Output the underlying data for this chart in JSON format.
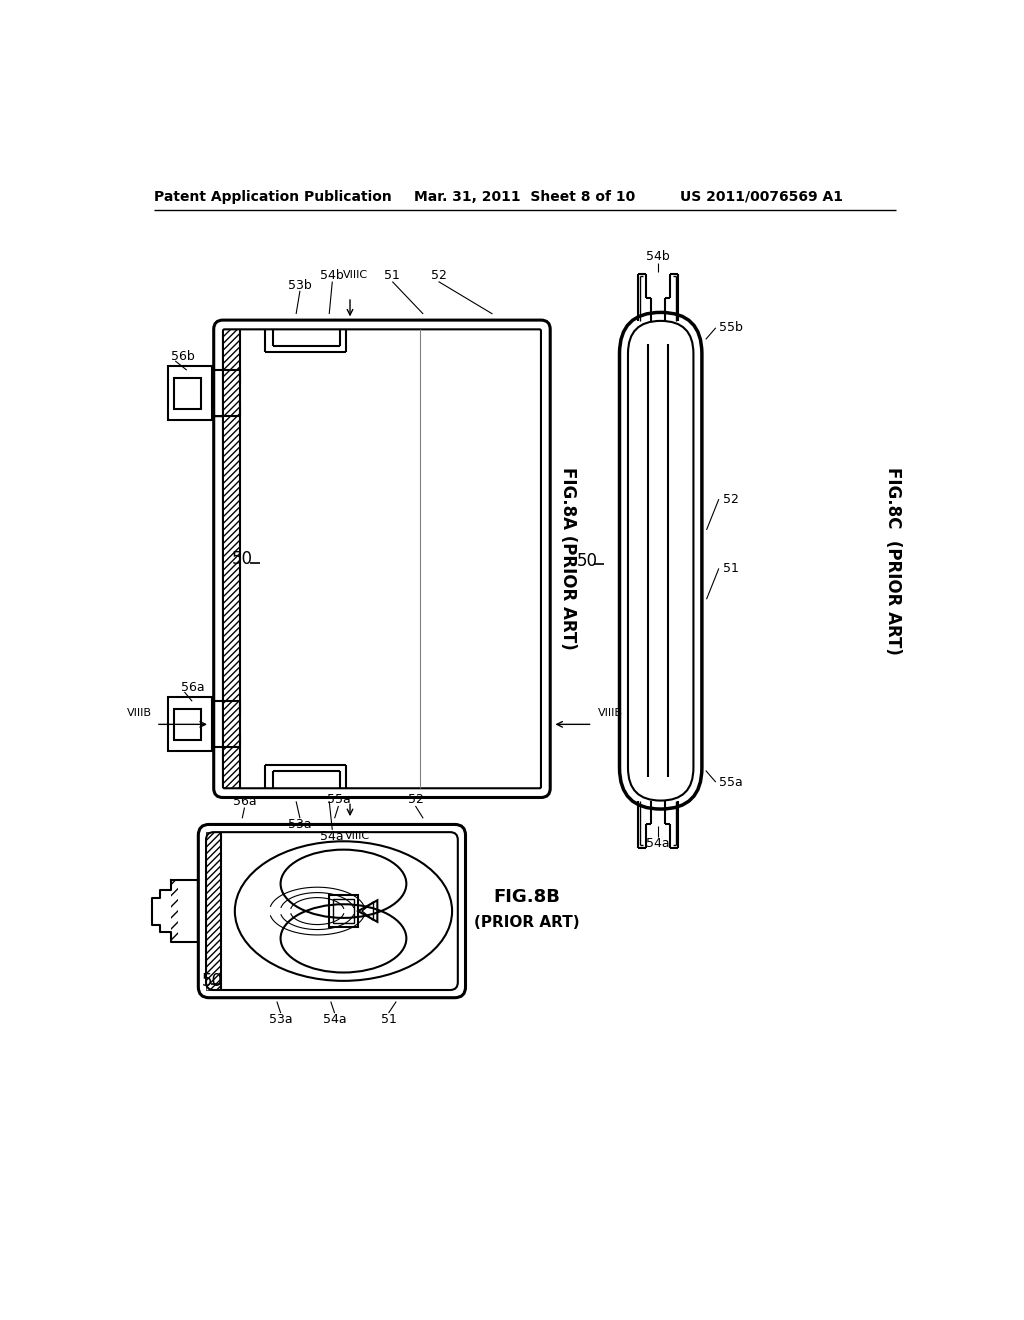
{
  "background_color": "#ffffff",
  "header_left": "Patent Application Publication",
  "header_center": "Mar. 31, 2011  Sheet 8 of 10",
  "header_right": "US 2011/0076569 A1",
  "fig8a_label": "FIG.8A (PRIOR ART)",
  "fig8b_label": "FIG.8B",
  "fig8b_sub": "(PRIOR ART)",
  "fig8c_label": "FIG.8C  (PRIOR ART)",
  "line_color": "#000000",
  "lw_outer": 2.2,
  "lw_inner": 1.5,
  "lw_thin": 1.0
}
